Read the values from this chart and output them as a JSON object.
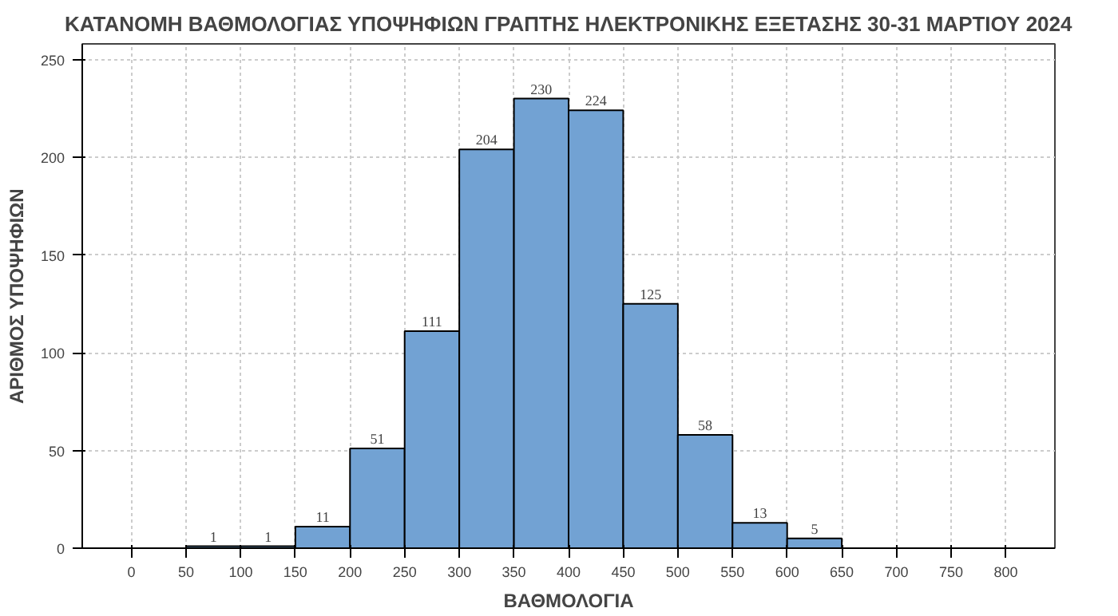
{
  "chart_data": {
    "type": "histogram",
    "title": "ΚΑΤΑΝΟΜΗ ΒΑΘΜΟΛΟΓΙΑΣ ΥΠΟΨΗΦΙΩΝ ΓΡΑΠΤΗΣ ΗΛΕΚΤΡΟΝΙΚΗΣ ΕΞΕΤΑΣΗΣ 30-31 ΜΑΡΤΙΟΥ 2024",
    "xlabel": "ΒΑΘΜΟΛΟΓΙΑ",
    "ylabel": "ΑΡΙΘΜΟΣ ΥΠΟΨΗΦΙΩΝ",
    "bins": [
      50,
      100,
      150,
      200,
      250,
      300,
      350,
      400,
      450,
      500,
      550,
      600,
      650
    ],
    "values": [
      1,
      1,
      11,
      51,
      111,
      204,
      230,
      224,
      125,
      58,
      13,
      5
    ],
    "color": "#72a2d3",
    "data_labels": true,
    "grid": true,
    "xlim": [
      -45,
      845
    ],
    "xticks": [
      0,
      50,
      100,
      150,
      200,
      250,
      300,
      350,
      400,
      450,
      500,
      550,
      600,
      650,
      700,
      750,
      800
    ],
    "ylim": [
      0,
      258
    ],
    "yticks": [
      0,
      50,
      100,
      150,
      200,
      250
    ]
  }
}
